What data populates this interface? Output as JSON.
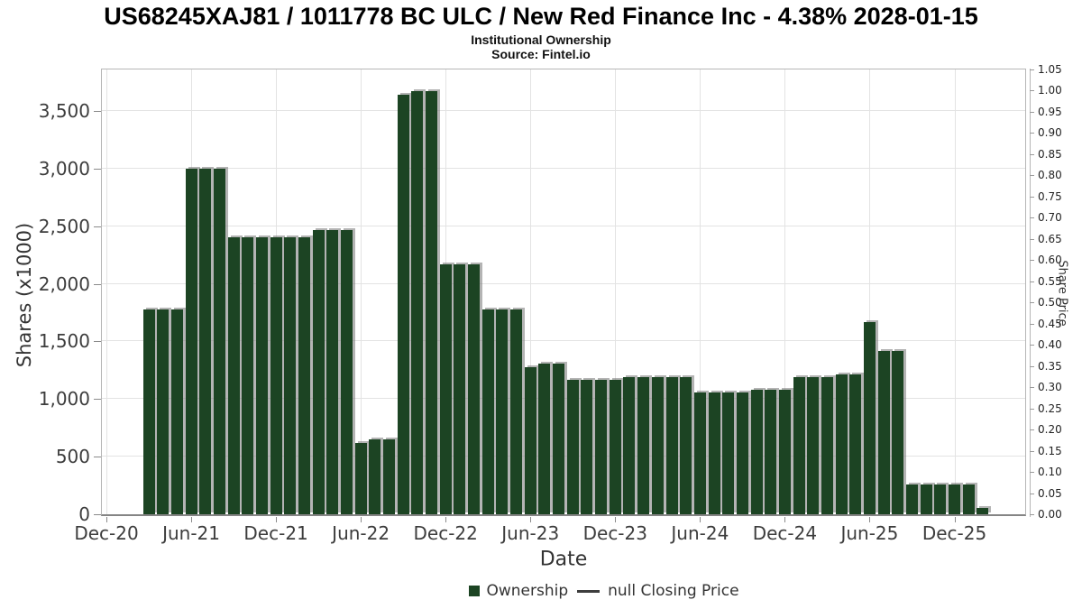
{
  "header": {
    "title": "US68245XAJ81 / 1011778 BC ULC / New Red Finance Inc - 4.38% 2028-01-15",
    "subtitle": "Institutional Ownership",
    "source": "Source: Fintel.io"
  },
  "chart_data": {
    "type": "bar",
    "title": "US68245XAJ81 / 1011778 BC ULC / New Red Finance Inc - 4.38% 2028-01-15",
    "subtitle": "Institutional Ownership",
    "source": "Source: Fintel.io",
    "xlabel": "Date",
    "ylabel": "Shares (x1000)",
    "ylabel_right": "Share Price",
    "grid": true,
    "legend_position": "bottom",
    "bar_color": "#1c4423",
    "ylim_left": [
      0,
      3860
    ],
    "ylim_right": [
      0,
      1.05
    ],
    "x_tick_labels": [
      "Dec-20",
      "Jun-21",
      "Dec-21",
      "Jun-22",
      "Dec-22",
      "Jun-23",
      "Dec-23",
      "Jun-24",
      "Dec-24",
      "Jun-25",
      "Dec-25"
    ],
    "y_tick_labels_left": [
      "0",
      "500",
      "1,000",
      "1,500",
      "2,000",
      "2,500",
      "3,000",
      "3,500"
    ],
    "y_tick_labels_right": [
      "0.00",
      "0.05",
      "0.10",
      "0.15",
      "0.20",
      "0.25",
      "0.30",
      "0.35",
      "0.40",
      "0.45",
      "0.50",
      "0.55",
      "0.60",
      "0.65",
      "0.70",
      "0.75",
      "0.80",
      "0.85",
      "0.90",
      "0.95",
      "1.00",
      "1.05"
    ],
    "categories": [
      "Mar-21",
      "Apr-21",
      "May-21",
      "Jun-21",
      "Jul-21",
      "Aug-21",
      "Sep-21",
      "Oct-21",
      "Nov-21",
      "Dec-21",
      "Jan-22",
      "Feb-22",
      "Mar-22",
      "Apr-22",
      "May-22",
      "Jun-22",
      "Jul-22",
      "Aug-22",
      "Sep-22",
      "Oct-22",
      "Nov-22",
      "Dec-22",
      "Jan-23",
      "Feb-23",
      "Mar-23",
      "Apr-23",
      "May-23",
      "Jun-23",
      "Jul-23",
      "Aug-23",
      "Sep-23",
      "Oct-23",
      "Nov-23",
      "Dec-23",
      "Jan-24",
      "Feb-24",
      "Mar-24",
      "Apr-24",
      "May-24",
      "Jun-24",
      "Jul-24",
      "Aug-24",
      "Sep-24",
      "Oct-24",
      "Nov-24",
      "Dec-24",
      "Jan-25",
      "Feb-25",
      "Mar-25",
      "Apr-25",
      "May-25",
      "Jun-25",
      "Jul-25",
      "Aug-25",
      "Sep-25",
      "Oct-25",
      "Nov-25",
      "Dec-25",
      "Jan-26",
      "Feb-26"
    ],
    "series": [
      {
        "name": "Ownership",
        "type": "bar",
        "color": "#1c4423",
        "values": [
          1775,
          1775,
          1775,
          3000,
          3000,
          3000,
          2405,
          2405,
          2405,
          2405,
          2405,
          2405,
          2465,
          2465,
          2465,
          620,
          650,
          650,
          3640,
          3675,
          3675,
          2170,
          2170,
          2170,
          1775,
          1775,
          1775,
          1275,
          1305,
          1305,
          1165,
          1165,
          1165,
          1165,
          1190,
          1190,
          1190,
          1190,
          1190,
          1060,
          1060,
          1060,
          1060,
          1080,
          1080,
          1080,
          1190,
          1190,
          1190,
          1215,
          1215,
          1665,
          1420,
          1420,
          255,
          255,
          255,
          255,
          255,
          55
        ]
      },
      {
        "name": "null Closing Price",
        "type": "line",
        "color": "#3d3d3d",
        "values": []
      }
    ]
  },
  "legend": {
    "ownership": "Ownership",
    "price": "null Closing Price"
  }
}
